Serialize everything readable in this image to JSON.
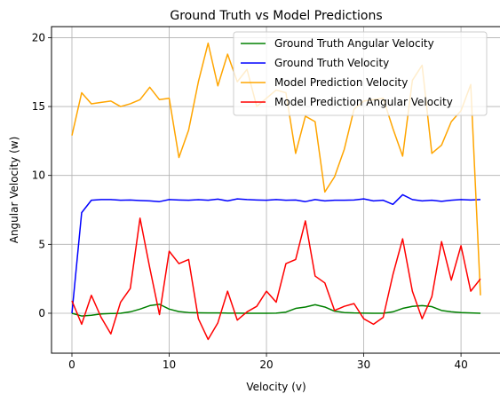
{
  "chart_data": {
    "type": "line",
    "title": "Ground Truth vs Model Predictions",
    "xlabel": "Velocity (v)",
    "ylabel": "Angular Velocity (w)",
    "xlim": [
      -2.1,
      44.1
    ],
    "ylim": [
      -2.9,
      20.8
    ],
    "xticks": [
      0,
      10,
      20,
      30,
      40
    ],
    "yticks": [
      0,
      5,
      10,
      15,
      20
    ],
    "grid": true,
    "legend_position": "top-right",
    "x": [
      0,
      1,
      2,
      3,
      4,
      5,
      6,
      7,
      8,
      9,
      10,
      11,
      12,
      13,
      14,
      15,
      16,
      17,
      18,
      19,
      20,
      21,
      22,
      23,
      24,
      25,
      26,
      27,
      28,
      29,
      30,
      31,
      32,
      33,
      34,
      35,
      36,
      37,
      38,
      39,
      40,
      41,
      42
    ],
    "series": [
      {
        "name": "Ground Truth Angular Velocity",
        "color": "#008000",
        "values": [
          0.0,
          -0.2,
          -0.15,
          -0.05,
          -0.02,
          0.0,
          0.1,
          0.3,
          0.55,
          0.65,
          0.3,
          0.12,
          0.05,
          0.03,
          0.02,
          0.02,
          0.01,
          0.01,
          0.0,
          0.0,
          0.0,
          0.01,
          0.08,
          0.35,
          0.45,
          0.62,
          0.45,
          0.15,
          0.05,
          0.02,
          0.01,
          0.0,
          0.0,
          0.1,
          0.35,
          0.5,
          0.55,
          0.48,
          0.2,
          0.1,
          0.05,
          0.02,
          0.0
        ]
      },
      {
        "name": "Ground Truth  Velocity",
        "color": "#0000ff",
        "values": [
          0.0,
          7.3,
          8.2,
          8.25,
          8.25,
          8.2,
          8.22,
          8.18,
          8.15,
          8.1,
          8.25,
          8.22,
          8.2,
          8.24,
          8.2,
          8.28,
          8.15,
          8.3,
          8.25,
          8.22,
          8.2,
          8.25,
          8.2,
          8.22,
          8.1,
          8.25,
          8.15,
          8.2,
          8.2,
          8.22,
          8.3,
          8.15,
          8.2,
          7.9,
          8.6,
          8.25,
          8.15,
          8.2,
          8.12,
          8.2,
          8.25,
          8.22,
          8.25
        ]
      },
      {
        "name": "Model Prediction Velocity",
        "color": "#ffa500",
        "values": [
          12.9,
          16.0,
          15.2,
          15.3,
          15.4,
          15.0,
          15.2,
          15.5,
          16.4,
          15.5,
          15.6,
          11.3,
          13.3,
          16.8,
          19.6,
          16.5,
          18.8,
          16.8,
          17.7,
          15.0,
          15.6,
          16.2,
          16.0,
          11.6,
          14.3,
          13.9,
          8.8,
          9.9,
          11.9,
          14.8,
          15.4,
          15.5,
          15.6,
          13.4,
          11.4,
          16.9,
          18.0,
          11.6,
          12.2,
          13.9,
          14.7,
          16.6,
          1.3
        ]
      },
      {
        "name": "Model Prediction Angular Velocity",
        "color": "#ff0000",
        "values": [
          0.9,
          -0.8,
          1.3,
          -0.3,
          -1.5,
          0.8,
          1.8,
          6.9,
          3.3,
          -0.1,
          4.5,
          3.6,
          3.9,
          -0.4,
          -1.9,
          -0.7,
          1.6,
          -0.5,
          0.1,
          0.5,
          1.6,
          0.8,
          3.6,
          3.9,
          6.7,
          2.7,
          2.2,
          0.2,
          0.5,
          0.7,
          -0.4,
          -0.8,
          -0.3,
          2.8,
          5.4,
          1.6,
          -0.4,
          1.2,
          5.2,
          2.4,
          4.9,
          1.6,
          2.5
        ]
      }
    ]
  }
}
